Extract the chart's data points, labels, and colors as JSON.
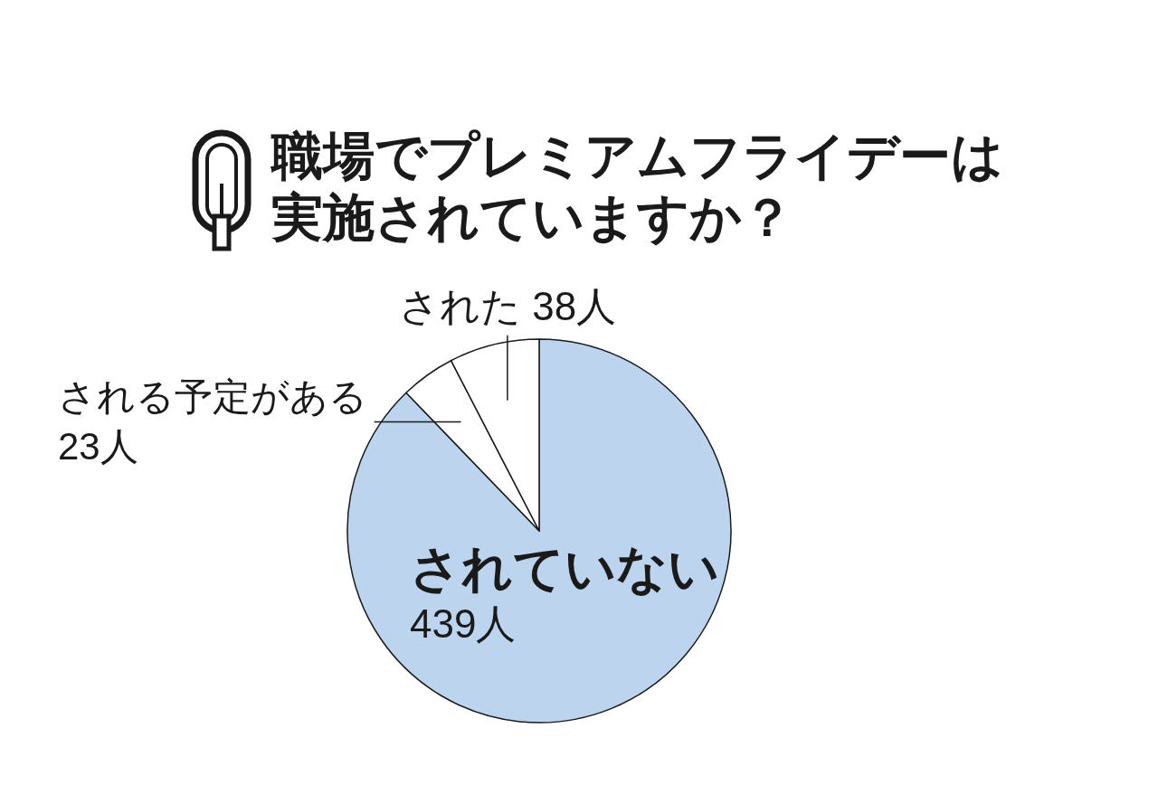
{
  "chart_data": {
    "type": "pie",
    "title": "職場でプレミアムフライデーは実施されていますか？",
    "categories": [
      "されていない",
      "される予定がある",
      "された"
    ],
    "values": [
      439,
      23,
      38
    ],
    "colors": [
      "#bcd4ee",
      "#ffffff",
      "#ffffff"
    ],
    "value_labels": [
      "439人",
      "23人",
      "38人"
    ]
  }
}
